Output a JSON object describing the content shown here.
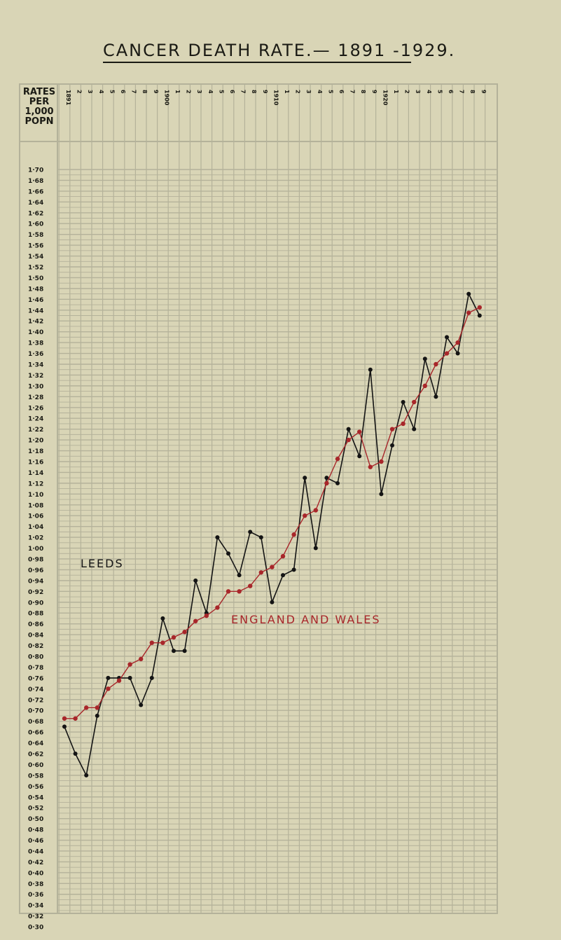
{
  "header": {
    "title": "CANCER DEATH RATE.— 1891 -1929.",
    "y_axis_heading": [
      "RATES",
      "PER",
      "1,000",
      "POPN"
    ]
  },
  "colors": {
    "paper": "#d9d5b6",
    "grid": "#b4b29a",
    "leeds": "#141414",
    "england_wales": "#a8262a"
  },
  "chart_data": {
    "type": "line",
    "title": "CANCER DEATH RATE.— 1891 -1929.",
    "xlabel": "",
    "ylabel": "RATES PER 1,000 POPN",
    "x": [
      1891,
      1892,
      1893,
      1894,
      1895,
      1896,
      1897,
      1898,
      1899,
      1900,
      1901,
      1902,
      1903,
      1904,
      1905,
      1906,
      1907,
      1908,
      1909,
      1910,
      1911,
      1912,
      1913,
      1914,
      1915,
      1916,
      1917,
      1918,
      1919,
      1920,
      1921,
      1922,
      1923,
      1924,
      1925,
      1926,
      1927,
      1928,
      1929
    ],
    "x_tick_labels": [
      "1891",
      "2",
      "3",
      "4",
      "5",
      "6",
      "7",
      "8",
      "9",
      "1900",
      "1",
      "2",
      "3",
      "4",
      "5",
      "6",
      "7",
      "8",
      "9",
      "1910",
      "1",
      "2",
      "3",
      "4",
      "5",
      "6",
      "7",
      "8",
      "9",
      "1920",
      "1",
      "2",
      "3",
      "4",
      "5",
      "6",
      "7",
      "8",
      "9"
    ],
    "y_tick_labels": [
      "1·70",
      "1·68",
      "1·66",
      "1·64",
      "1·62",
      "1·60",
      "1·58",
      "1·56",
      "1·54",
      "1·52",
      "1·50",
      "1·48",
      "1·46",
      "1·44",
      "1·42",
      "1·40",
      "1·38",
      "1·36",
      "1·34",
      "1·32",
      "1·30",
      "1·28",
      "1·26",
      "1·24",
      "1·22",
      "1·20",
      "1·18",
      "1·16",
      "1·14",
      "1·12",
      "1·10",
      "1·08",
      "1·06",
      "1·04",
      "1·02",
      "1·00",
      "0·98",
      "0·96",
      "0·94",
      "0·92",
      "0·90",
      "0·88",
      "0·86",
      "0·84",
      "0·82",
      "0·80",
      "0·78",
      "0·76",
      "0·74",
      "0·72",
      "0·70",
      "0·68",
      "0·66",
      "0·64",
      "0·62",
      "0·60",
      "0·58",
      "0·56",
      "0·54",
      "0·52",
      "0·50",
      "0·48",
      "0·46",
      "0·44",
      "0·42",
      "0·40",
      "0·38",
      "0·36",
      "0·34",
      "0·32",
      "0·30"
    ],
    "ylim": [
      0.3,
      1.7
    ],
    "grid": true,
    "series": [
      {
        "name": "LEEDS",
        "color": "#141414",
        "values": [
          0.67,
          0.62,
          0.58,
          0.69,
          0.76,
          0.76,
          0.76,
          0.71,
          0.76,
          0.87,
          0.81,
          0.81,
          0.94,
          0.88,
          1.02,
          0.99,
          0.95,
          1.03,
          1.02,
          0.9,
          0.95,
          0.96,
          1.13,
          1.0,
          1.13,
          1.12,
          1.22,
          1.17,
          1.33,
          1.1,
          1.19,
          1.27,
          1.22,
          1.35,
          1.28,
          1.39,
          1.36,
          1.47,
          1.43
        ]
      },
      {
        "name": "ENGLAND AND WALES",
        "color": "#a8262a",
        "values": [
          0.685,
          0.685,
          0.705,
          0.705,
          0.74,
          0.755,
          0.785,
          0.795,
          0.825,
          0.825,
          0.835,
          0.845,
          0.865,
          0.875,
          0.89,
          0.92,
          0.92,
          0.93,
          0.955,
          0.965,
          0.985,
          1.025,
          1.06,
          1.07,
          1.12,
          1.165,
          1.2,
          1.215,
          1.15,
          1.16,
          1.22,
          1.23,
          1.27,
          1.3,
          1.34,
          1.36,
          1.38,
          1.435,
          1.445
        ]
      }
    ],
    "annotations": [
      {
        "text": "LEEDS",
        "color": "#141414"
      },
      {
        "text": "ENGLAND AND WALES",
        "color": "#a8262a"
      }
    ]
  }
}
